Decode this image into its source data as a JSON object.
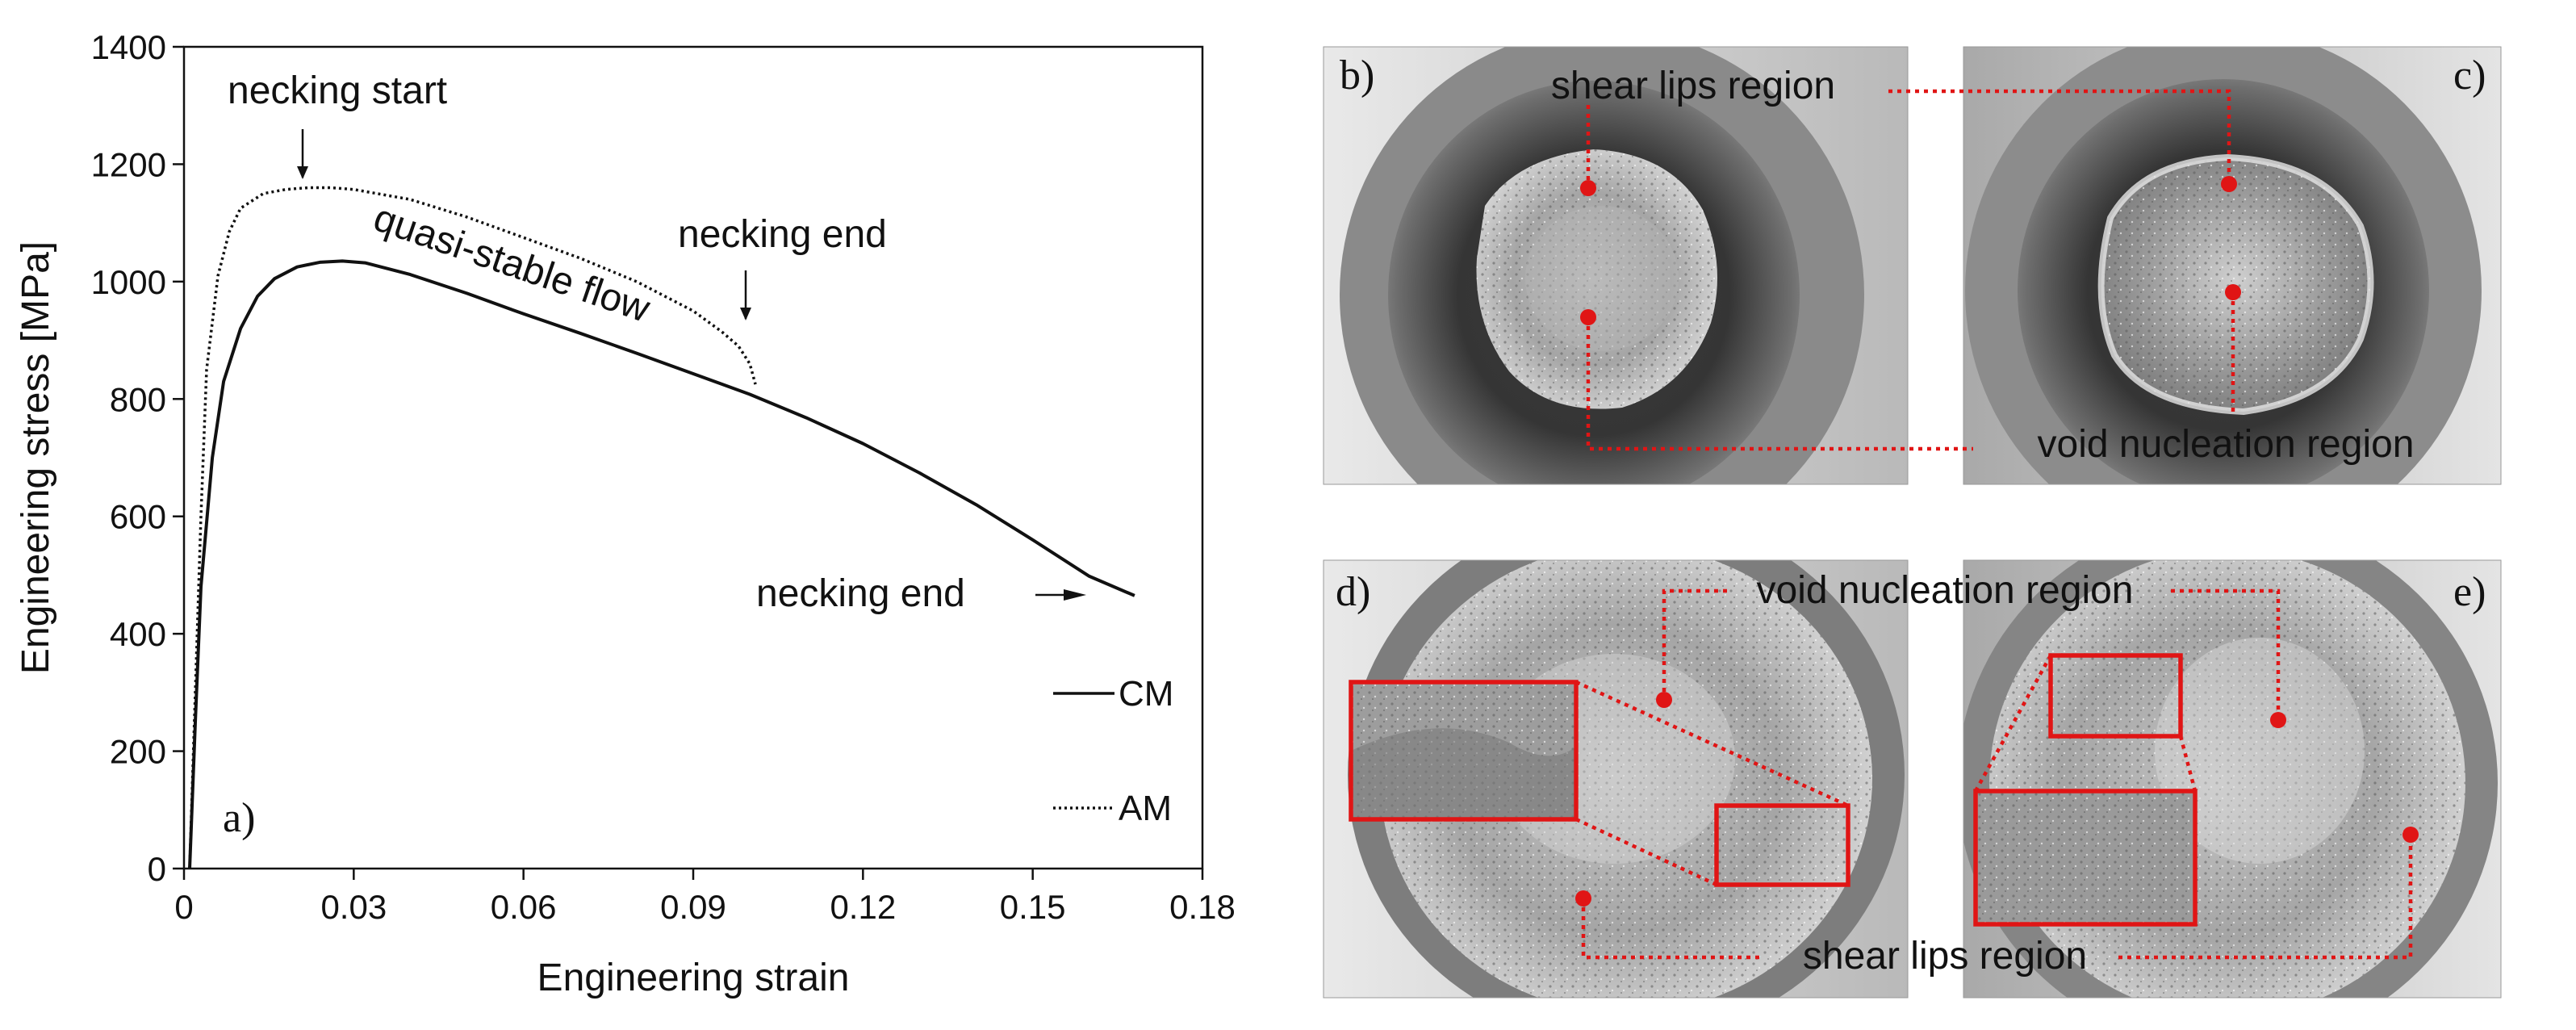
{
  "chart_data": {
    "type": "line",
    "panel_label": "a)",
    "xlabel": "Engineering strain",
    "ylabel": "Engineering stress [MPa]",
    "xlim": [
      0,
      0.18
    ],
    "ylim": [
      0,
      1400
    ],
    "xticks": [
      "0",
      "0.03",
      "0.06",
      "0.09",
      "0.12",
      "0.15",
      "0.18"
    ],
    "yticks": [
      "0",
      "200",
      "400",
      "600",
      "800",
      "1000",
      "1200",
      "1400"
    ],
    "grid": false,
    "legend_position": "bottom-right",
    "series": [
      {
        "name": "CM",
        "style": "solid",
        "x": [
          0.001,
          0.002,
          0.003,
          0.005,
          0.007,
          0.01,
          0.013,
          0.016,
          0.02,
          0.024,
          0.028,
          0.032,
          0.04,
          0.05,
          0.06,
          0.07,
          0.08,
          0.09,
          0.1,
          0.11,
          0.12,
          0.13,
          0.14,
          0.15,
          0.16,
          0.168
        ],
        "y": [
          0,
          250,
          480,
          700,
          830,
          920,
          975,
          1005,
          1025,
          1033,
          1035,
          1032,
          1012,
          980,
          945,
          912,
          878,
          843,
          808,
          768,
          724,
          674,
          620,
          560,
          498,
          465
        ]
      },
      {
        "name": "AM",
        "style": "dotted",
        "x": [
          0.001,
          0.002,
          0.003,
          0.004,
          0.006,
          0.008,
          0.01,
          0.014,
          0.018,
          0.022,
          0.026,
          0.03,
          0.04,
          0.05,
          0.06,
          0.07,
          0.08,
          0.09,
          0.095,
          0.098,
          0.1,
          0.101
        ],
        "y": [
          0,
          300,
          600,
          850,
          1010,
          1085,
          1125,
          1150,
          1157,
          1160,
          1160,
          1157,
          1140,
          1110,
          1075,
          1040,
          1000,
          950,
          915,
          890,
          860,
          825
        ]
      }
    ],
    "annotations": [
      {
        "text": "necking start",
        "x": 0.021,
        "y": 1175
      },
      {
        "text": "necking end",
        "x": 0.099,
        "y": 935
      },
      {
        "text": "quasi-stable flow"
      },
      {
        "text": "necking end",
        "x": 0.16,
        "y": 470
      }
    ]
  },
  "photos": [
    {
      "label": "b)"
    },
    {
      "label": "c)"
    },
    {
      "label": "d)"
    },
    {
      "label": "e)"
    }
  ],
  "photo_annotations": {
    "top_shear": "shear lips region",
    "top_void": "void nucleation region",
    "bottom_void": "void nucleation region",
    "bottom_shear": "shear lips region"
  },
  "colors": {
    "annotation_red": "#e01515",
    "curve": "#111111"
  }
}
